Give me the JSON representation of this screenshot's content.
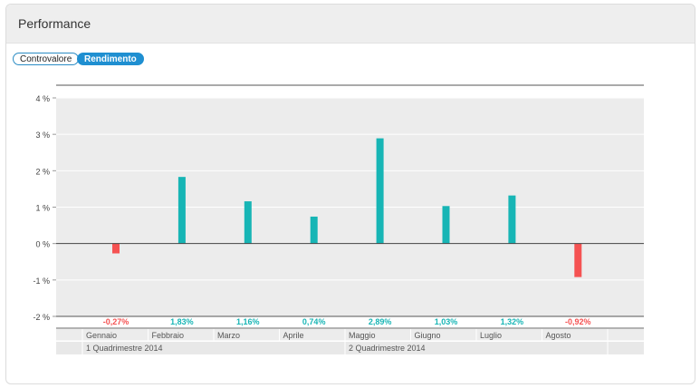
{
  "panel": {
    "title": "Performance",
    "toggles": [
      {
        "label": "Controvalore",
        "active": false
      },
      {
        "label": "Rendimento",
        "active": true
      }
    ]
  },
  "colors": {
    "positive": "#17b5b5",
    "negative": "#f55252",
    "plot_background": "#ececec"
  },
  "chart_data": {
    "type": "bar",
    "categories": [
      "Gennaio",
      "Febbraio",
      "Marzo",
      "Aprile",
      "Maggio",
      "Giugno",
      "Luglio",
      "Agosto"
    ],
    "values": [
      -0.27,
      1.83,
      1.16,
      0.74,
      2.89,
      1.03,
      1.32,
      -0.92
    ],
    "value_labels": [
      "-0,27%",
      "1,83%",
      "1,16%",
      "0,74%",
      "2,89%",
      "1,03%",
      "1,32%",
      "-0,92%"
    ],
    "ylim": [
      -2,
      4
    ],
    "yticks": [
      4,
      3,
      2,
      1,
      0,
      -1,
      -2
    ],
    "ytick_labels": [
      "4 %",
      "3 %",
      "2 %",
      "1 %",
      "0 %",
      "-1 %",
      "-2 %"
    ],
    "groups": [
      {
        "label": "1 Quadrimestre 2014",
        "months": 4
      },
      {
        "label": "2 Quadrimestre 2014",
        "months": 4
      }
    ],
    "grid": true,
    "title": "",
    "xlabel": "",
    "ylabel": ""
  }
}
